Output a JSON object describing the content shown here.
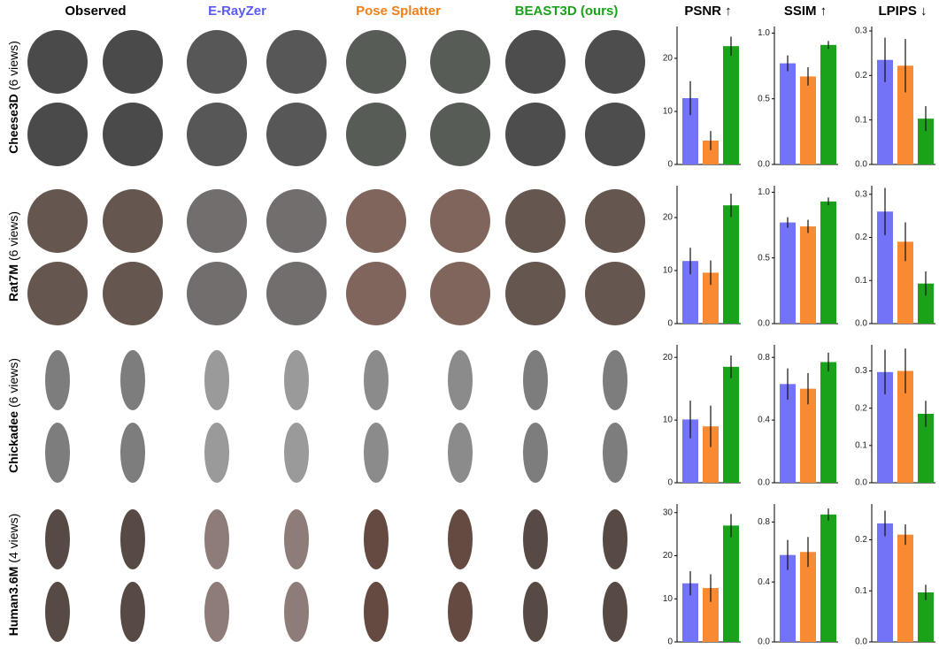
{
  "columns": [
    {
      "name": "Observed",
      "color": "#000000"
    },
    {
      "name": "E-RayZer",
      "color": "#5b5bf0"
    },
    {
      "name": "Pose Splatter",
      "color": "#f07f1a"
    },
    {
      "name": "BEAST3D (ours)",
      "color": "#19a319"
    }
  ],
  "metrics": [
    "PSNR ↑",
    "SSIM ↑",
    "LPIPS ↓"
  ],
  "rows": [
    {
      "name": "Cheese3D",
      "views": "(6 views)"
    },
    {
      "name": "Rat7M",
      "views": "(6 views)"
    },
    {
      "name": "Chickadee",
      "views": "(6 views)"
    },
    {
      "name": "Human3.6M",
      "views": "(4 views)"
    }
  ],
  "chart_data": [
    {
      "type": "bar",
      "values": [
        12.5,
        4.5,
        22.3
      ],
      "errors": [
        3.2,
        1.8,
        1.8
      ],
      "colors": [
        "#7373f7",
        "#f88a33",
        "#1aa31a"
      ],
      "ylim": [
        0,
        26
      ],
      "yticks": [
        0,
        10,
        20
      ]
    },
    {
      "type": "bar",
      "values": [
        0.77,
        0.67,
        0.91
      ],
      "errors": [
        0.06,
        0.07,
        0.03
      ],
      "colors": [
        "#7373f7",
        "#f88a33",
        "#1aa31a"
      ],
      "ylim": [
        0,
        1.05
      ],
      "yticks": [
        {
          "value": 0,
          "label": "0.0"
        },
        0.5,
        {
          "value": 1,
          "label": "1.0"
        }
      ]
    },
    {
      "type": "bar",
      "values": [
        0.235,
        0.222,
        0.103
      ],
      "errors": [
        0.05,
        0.06,
        0.028
      ],
      "colors": [
        "#7373f7",
        "#f88a33",
        "#1aa31a"
      ],
      "ylim": [
        0,
        0.31
      ],
      "yticks": [
        {
          "value": 0,
          "label": "0.0"
        },
        0.1,
        0.2,
        0.3
      ]
    },
    {
      "type": "bar",
      "values": [
        11.8,
        9.6,
        22.3
      ],
      "errors": [
        2.5,
        2.3,
        2.2
      ],
      "colors": [
        "#7373f7",
        "#f88a33",
        "#1aa31a"
      ],
      "ylim": [
        0,
        26
      ],
      "yticks": [
        0,
        10,
        20
      ]
    },
    {
      "type": "bar",
      "values": [
        0.77,
        0.74,
        0.93
      ],
      "errors": [
        0.04,
        0.05,
        0.03
      ],
      "colors": [
        "#7373f7",
        "#f88a33",
        "#1aa31a"
      ],
      "ylim": [
        0,
        1.05
      ],
      "yticks": [
        {
          "value": 0,
          "label": "0.0"
        },
        0.5,
        {
          "value": 1,
          "label": "1.0"
        }
      ]
    },
    {
      "type": "bar",
      "values": [
        0.26,
        0.19,
        0.093
      ],
      "errors": [
        0.055,
        0.045,
        0.028
      ],
      "colors": [
        "#7373f7",
        "#f88a33",
        "#1aa31a"
      ],
      "ylim": [
        0,
        0.32
      ],
      "yticks": [
        {
          "value": 0,
          "label": "0.0"
        },
        0.1,
        0.2,
        0.3
      ]
    },
    {
      "type": "bar",
      "values": [
        10.1,
        9,
        18.5
      ],
      "errors": [
        3,
        3.3,
        1.8
      ],
      "colors": [
        "#7373f7",
        "#f88a33",
        "#1aa31a"
      ],
      "ylim": [
        0,
        22
      ],
      "yticks": [
        0,
        10,
        20
      ]
    },
    {
      "type": "bar",
      "values": [
        0.63,
        0.6,
        0.77
      ],
      "errors": [
        0.1,
        0.1,
        0.06
      ],
      "colors": [
        "#7373f7",
        "#f88a33",
        "#1aa31a"
      ],
      "ylim": [
        0,
        0.88
      ],
      "yticks": [
        {
          "value": 0,
          "label": "0.0"
        },
        0.4,
        0.8
      ]
    },
    {
      "type": "bar",
      "values": [
        0.297,
        0.3,
        0.185
      ],
      "errors": [
        0.06,
        0.06,
        0.035
      ],
      "colors": [
        "#7373f7",
        "#f88a33",
        "#1aa31a"
      ],
      "ylim": [
        0,
        0.37
      ],
      "yticks": [
        {
          "value": 0,
          "label": "0.0"
        },
        0.1,
        0.2,
        0.3
      ]
    },
    {
      "type": "bar",
      "values": [
        13.6,
        12.5,
        27
      ],
      "errors": [
        2.8,
        3.2,
        2.7
      ],
      "colors": [
        "#7373f7",
        "#f88a33",
        "#1aa31a"
      ],
      "ylim": [
        0,
        32
      ],
      "yticks": [
        0,
        10,
        20,
        30
      ]
    },
    {
      "type": "bar",
      "values": [
        0.58,
        0.6,
        0.85
      ],
      "errors": [
        0.1,
        0.1,
        0.04
      ],
      "colors": [
        "#7373f7",
        "#f88a33",
        "#1aa31a"
      ],
      "ylim": [
        0,
        0.92
      ],
      "yticks": [
        {
          "value": 0,
          "label": "0.0"
        },
        0.4,
        0.8
      ]
    },
    {
      "type": "bar",
      "values": [
        0.232,
        0.21,
        0.097
      ],
      "errors": [
        0.025,
        0.02,
        0.015
      ],
      "colors": [
        "#7373f7",
        "#f88a33",
        "#1aa31a"
      ],
      "ylim": [
        0,
        0.27
      ],
      "yticks": [
        {
          "value": 0,
          "label": "0.0"
        },
        0.1,
        0.2
      ]
    }
  ]
}
